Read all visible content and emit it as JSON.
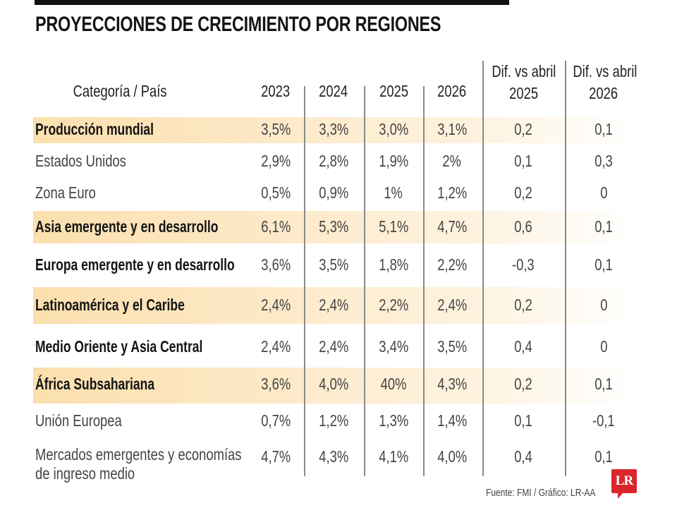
{
  "title": "PROYECCIONES DE CRECIMIENTO POR REGIONES",
  "source": "Fuente: FMI / Gráfico: LR-AA",
  "logo": "LR",
  "colors": {
    "highlight": "#fbdfae",
    "text": "#444444",
    "bold_text": "#141414",
    "logo": "#d9262b"
  },
  "chart_data": {
    "type": "table",
    "title": "PROYECCIONES DE CRECIMIENTO POR REGIONES",
    "columns": [
      "Categoría / País",
      "2023",
      "2024",
      "2025",
      "2026",
      "Dif. vs abril 2025",
      "Dif. vs abril 2026"
    ],
    "header": {
      "category": "Categoría / País",
      "c2023": "2023",
      "c2024": "2024",
      "c2025": "2025",
      "c2026": "2026",
      "dif_line1": "Dif. vs abril",
      "dif2025": "2025",
      "dif2026": "2026"
    },
    "rows": [
      {
        "label": "Producción mundial",
        "bold": true,
        "highlight": true,
        "values": [
          "3,5%",
          "3,3%",
          "3,0%",
          "3,1%",
          "0,2",
          "0,1"
        ]
      },
      {
        "label": "Estados Unidos",
        "bold": false,
        "highlight": false,
        "values": [
          "2,9%",
          "2,8%",
          "1,9%",
          "2%",
          "0,1",
          "0,3"
        ]
      },
      {
        "label": "Zona Euro",
        "bold": false,
        "highlight": false,
        "values": [
          "0,5%",
          "0,9%",
          "1%",
          "1,2%",
          "0,2",
          "0"
        ]
      },
      {
        "label": "Asia emergente y en desarrollo",
        "bold": true,
        "highlight": true,
        "values": [
          "6,1%",
          "5,3%",
          "5,1%",
          "4,7%",
          "0,6",
          "0,1"
        ]
      },
      {
        "label": "Europa emergente y en desarrollo",
        "bold": true,
        "highlight": false,
        "values": [
          "3,6%",
          "3,5%",
          "1,8%",
          "2,2%",
          "-0,3",
          "0,1"
        ]
      },
      {
        "label": "Latinoamérica y el Caribe",
        "bold": true,
        "highlight": true,
        "values": [
          "2,4%",
          "2,4%",
          "2,2%",
          "2,4%",
          "0,2",
          "0"
        ]
      },
      {
        "label": "Medio Oriente y Asia Central",
        "bold": true,
        "highlight": false,
        "values": [
          "2,4%",
          "2,4%",
          "3,4%",
          "3,5%",
          "0,4",
          "0"
        ]
      },
      {
        "label": "África Subsahariana",
        "bold": true,
        "highlight": true,
        "values": [
          "3,6%",
          "4,0%",
          "40%",
          "4,3%",
          "0,2",
          "0,1"
        ]
      },
      {
        "label": "Unión Europea",
        "bold": false,
        "highlight": false,
        "values": [
          "0,7%",
          "1,2%",
          "1,3%",
          "1,4%",
          "0,1",
          "-0,1"
        ]
      },
      {
        "label": "Mercados emergentes y economías",
        "label_line2": "de ingreso medio",
        "bold": false,
        "highlight": false,
        "values": [
          "4,7%",
          "4,3%",
          "4,1%",
          "4,0%",
          "0,4",
          "0,1"
        ]
      }
    ]
  }
}
